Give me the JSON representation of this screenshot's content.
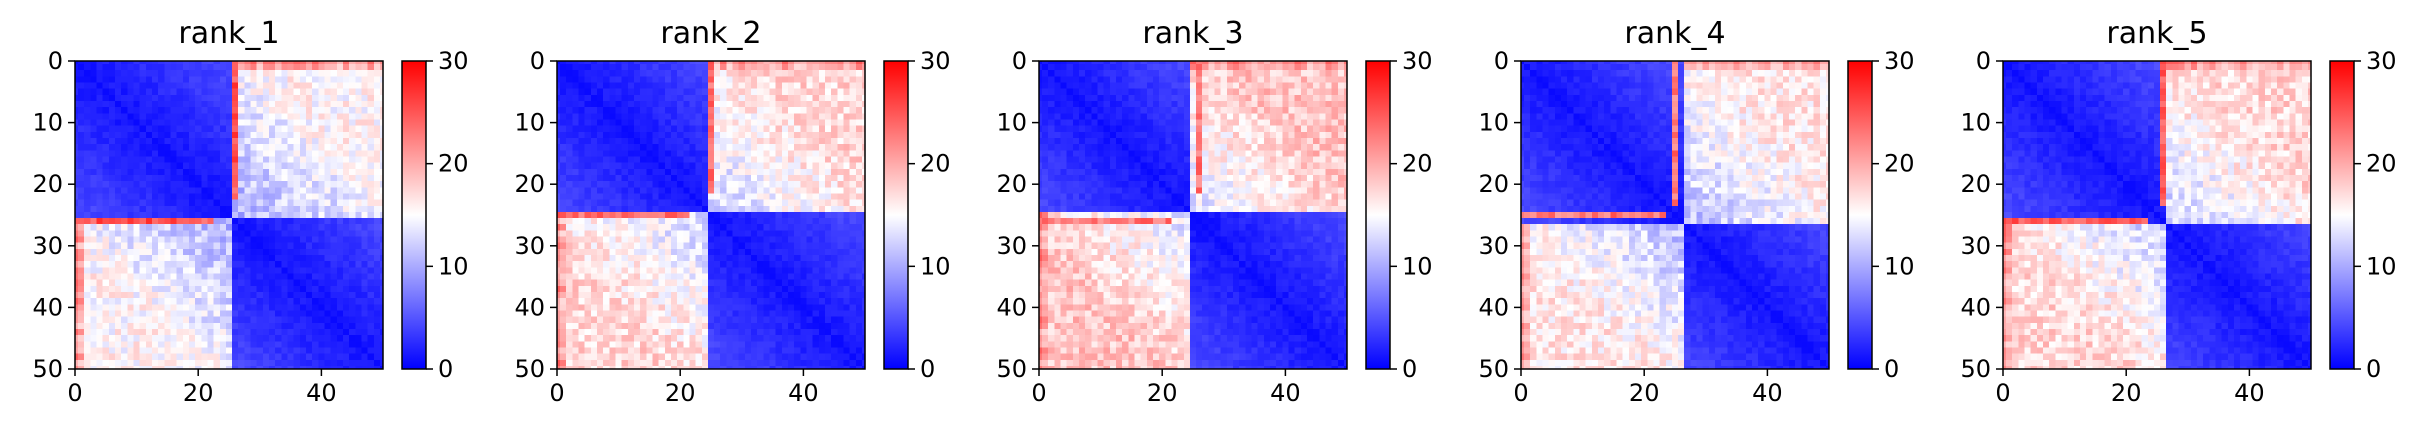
{
  "figure": {
    "background": "#ffffff",
    "cmap": [
      "#0000ff",
      "#ffffff",
      "#ff0000"
    ]
  },
  "chart_data": [
    {
      "type": "heatmap",
      "title": "rank_1",
      "size": 51,
      "xlim": [
        0,
        50
      ],
      "ylim": [
        50,
        0
      ],
      "xticks": [
        "0",
        "20",
        "40"
      ],
      "yticks": [
        "0",
        "10",
        "20",
        "30",
        "40",
        "50"
      ],
      "clim": [
        0,
        30
      ],
      "colorbar_ticks": [
        "0",
        "10",
        "20",
        "30"
      ],
      "domain_split": 26,
      "seed": 11,
      "far_off_diagonal_value": 14,
      "highlight_row": 26,
      "highlight_value": 25,
      "top_edge_value": 22
    },
    {
      "type": "heatmap",
      "title": "rank_2",
      "size": 51,
      "xlim": [
        0,
        50
      ],
      "ylim": [
        50,
        0
      ],
      "xticks": [
        "0",
        "20",
        "40"
      ],
      "yticks": [
        "0",
        "10",
        "20",
        "30",
        "40",
        "50"
      ],
      "clim": [
        0,
        30
      ],
      "colorbar_ticks": [
        "0",
        "10",
        "20",
        "30"
      ],
      "domain_split": 25,
      "seed": 23,
      "far_off_diagonal_value": 16,
      "highlight_row": 25,
      "highlight_value": 24,
      "top_edge_value": 22
    },
    {
      "type": "heatmap",
      "title": "rank_3",
      "size": 51,
      "xlim": [
        0,
        50
      ],
      "ylim": [
        50,
        0
      ],
      "xticks": [
        "0",
        "20",
        "40"
      ],
      "yticks": [
        "0",
        "10",
        "20",
        "30",
        "40",
        "50"
      ],
      "clim": [
        0,
        30
      ],
      "colorbar_ticks": [
        "0",
        "10",
        "20",
        "30"
      ],
      "domain_split": 25,
      "seed": 37,
      "far_off_diagonal_value": 17,
      "highlight_row": 26,
      "highlight_value": 23,
      "top_edge_value": 22
    },
    {
      "type": "heatmap",
      "title": "rank_4",
      "size": 51,
      "xlim": [
        0,
        50
      ],
      "ylim": [
        50,
        0
      ],
      "xticks": [
        "0",
        "20",
        "40"
      ],
      "yticks": [
        "0",
        "10",
        "20",
        "30",
        "40",
        "50"
      ],
      "clim": [
        0,
        30
      ],
      "colorbar_ticks": [
        "0",
        "10",
        "20",
        "30"
      ],
      "domain_split": 27,
      "seed": 41,
      "far_off_diagonal_value": 15,
      "highlight_row": 25,
      "highlight_value": 23,
      "top_edge_value": 21
    },
    {
      "type": "heatmap",
      "title": "rank_5",
      "size": 51,
      "xlim": [
        0,
        50
      ],
      "ylim": [
        50,
        0
      ],
      "xticks": [
        "0",
        "20",
        "40"
      ],
      "yticks": [
        "0",
        "10",
        "20",
        "30",
        "40",
        "50"
      ],
      "clim": [
        0,
        30
      ],
      "colorbar_ticks": [
        "0",
        "10",
        "20",
        "30"
      ],
      "domain_split": 27,
      "seed": 53,
      "far_off_diagonal_value": 16,
      "highlight_row": 26,
      "highlight_value": 24,
      "top_edge_value": 22
    }
  ]
}
